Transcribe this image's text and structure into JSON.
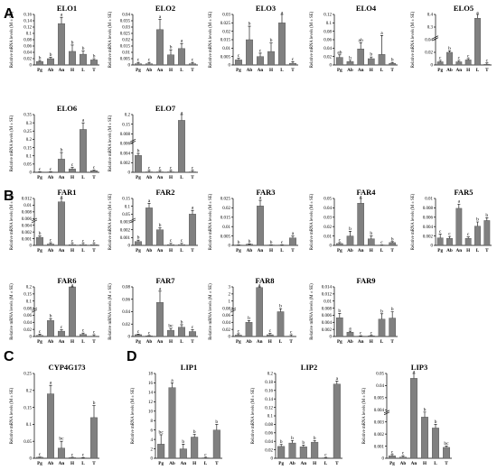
{
  "ylabel_default": "Relative mRNA levels (M ± SE)",
  "categories_default": [
    "Pg",
    "Ab",
    "An",
    "H",
    "L",
    "T"
  ],
  "chart_data": [
    {
      "type": "bar",
      "panel": "A",
      "title": "ELO1",
      "ylabel": "Relative mRNA levels (M ± SE)",
      "categories": [
        "Pg",
        "Ab",
        "An",
        "H",
        "L",
        "T"
      ],
      "values": [
        0.011,
        0.02,
        0.131,
        0.043,
        0.034,
        0.016
      ],
      "errors": [
        0.003,
        0.004,
        0.02,
        0.02,
        0.01,
        0.004
      ],
      "letters": [
        "b",
        "b",
        "a",
        "b",
        "b",
        "b"
      ],
      "yticks": [
        0,
        0.02,
        0.04,
        0.06,
        0.08,
        0.1,
        0.12,
        0.14,
        0.16
      ],
      "ylim": [
        0,
        0.16
      ]
    },
    {
      "type": "bar",
      "panel": "A",
      "title": "ELO2",
      "ylabel": "Relative mRNA levels (M ± SE)",
      "categories": [
        "Pg",
        "Ab",
        "An",
        "H",
        "L",
        "T"
      ],
      "values": [
        0.001,
        0.001,
        0.028,
        0.008,
        0.013,
        0.001
      ],
      "errors": [
        0.001,
        0.001,
        0.008,
        0.004,
        0.004,
        0.001
      ],
      "letters": [
        "c",
        "c",
        "a",
        "b",
        "a",
        "c"
      ],
      "yticks": [
        0,
        0.005,
        0.01,
        0.015,
        0.02,
        0.025,
        0.03,
        0.035,
        0.04
      ],
      "ylim": [
        0,
        0.04
      ]
    },
    {
      "type": "bar",
      "panel": "A",
      "title": "ELO3",
      "ylabel": "Relative mRNA levels (M ± SE)",
      "categories": [
        "Pg",
        "Ab",
        "An",
        "H",
        "L",
        "T"
      ],
      "values": [
        0.003,
        0.015,
        0.005,
        0.008,
        0.025,
        0.001
      ],
      "errors": [
        0.001,
        0.008,
        0.002,
        0.005,
        0.005,
        0.001
      ],
      "letters": [
        "c",
        "b",
        "c",
        "b",
        "a",
        "c"
      ],
      "yticks": [
        0,
        0.005,
        0.01,
        0.015,
        0.02,
        0.025,
        0.03
      ],
      "ylim": [
        0,
        0.03
      ]
    },
    {
      "type": "bar",
      "panel": "A",
      "title": "ELO4",
      "ylabel": "Relative mRNA levels (M ± SE)",
      "categories": [
        "Pg",
        "Ab",
        "An",
        "H",
        "L",
        "T"
      ],
      "values": [
        0.018,
        0.008,
        0.038,
        0.015,
        0.025,
        0.004
      ],
      "errors": [
        0.006,
        0.003,
        0.015,
        0.004,
        0.045,
        0.002
      ],
      "letters": [
        "ab",
        "b",
        "ab",
        "b",
        "a",
        "b"
      ],
      "yticks": [
        0,
        0.02,
        0.04,
        0.06,
        0.08,
        0.1,
        0.12
      ],
      "ylim": [
        0,
        0.12
      ]
    },
    {
      "type": "bar",
      "panel": "A",
      "title": "ELO5",
      "ylabel": "Relative mRNA levels (M ± SE)",
      "categories": [
        "Pg",
        "Ab",
        "An",
        "H",
        "L",
        "T"
      ],
      "values": [
        0.005,
        0.02,
        0.005,
        0.008,
        0.37,
        0.001
      ],
      "errors": [
        0.002,
        0.005,
        0.002,
        0.003,
        0.08,
        0.001
      ],
      "letters": [
        "c",
        "b",
        "c",
        "c",
        "a",
        "c"
      ],
      "yticks": [
        0,
        0.02,
        0.04,
        0.3,
        0.4
      ],
      "ylim": [
        0,
        0.45
      ]
    },
    {
      "type": "bar",
      "panel": "A",
      "title": "ELO6",
      "ylabel": "Relative mRNA levels (M ± SE)",
      "categories": [
        "Pg",
        "Ab",
        "An",
        "H",
        "L",
        "T"
      ],
      "values": [
        0.001,
        0.001,
        0.08,
        0.02,
        0.26,
        0.01
      ],
      "errors": [
        0.001,
        0.001,
        0.04,
        0.01,
        0.04,
        0.005
      ],
      "letters": [
        "c",
        "c",
        "b",
        "c",
        "a",
        "c"
      ],
      "yticks": [
        0,
        0.05,
        0.1,
        0.15,
        0.2,
        0.25,
        0.3,
        0.35
      ],
      "ylim": [
        0,
        0.35
      ]
    },
    {
      "type": "bar",
      "panel": "A",
      "title": "ELO7",
      "ylabel": "Relative mRNA levels (M ± SE)",
      "categories": [
        "Pg",
        "Ab",
        "An",
        "H",
        "L",
        "T"
      ],
      "values": [
        0.0035,
        0.0001,
        0.0001,
        0.0001,
        0.17,
        0.0001
      ],
      "errors": [
        0.0012,
        0.0001,
        0.0001,
        0.0001,
        0.006,
        0.0001
      ],
      "letters": [
        "b",
        "c",
        "c",
        "c",
        "a",
        "c"
      ],
      "yticks": [
        0,
        0.002,
        0.004,
        0.006,
        0.008,
        0.15,
        0.2
      ],
      "ylim": [
        0,
        0.2
      ]
    },
    {
      "type": "bar",
      "panel": "B",
      "title": "FAR1",
      "ylabel": "Relative mRNA levels (M ± SE)",
      "categories": [
        "Pg",
        "Ab",
        "An",
        "H",
        "L",
        "T"
      ],
      "values": [
        0.0012,
        0.0002,
        0.011,
        0.0001,
        0.0001,
        0.0001
      ],
      "errors": [
        0.0003,
        0.0001,
        0.0008,
        0.0001,
        0.0001,
        0.0001
      ],
      "letters": [
        "b",
        "c",
        "a",
        "c",
        "c",
        "c"
      ],
      "yticks": [
        0,
        0.001,
        0.002,
        0.004,
        0.006,
        0.008,
        0.01,
        0.012
      ],
      "ylim": [
        0,
        0.012
      ]
    },
    {
      "type": "bar",
      "panel": "B",
      "title": "FAR2",
      "ylabel": "Relative mRNA levels (M ± SE)",
      "categories": [
        "Pg",
        "Ab",
        "An",
        "H",
        "L",
        "T"
      ],
      "values": [
        0.0005,
        0.09,
        0.002,
        0.0001,
        0.0001,
        0.05
      ],
      "errors": [
        0.0002,
        0.02,
        0.0005,
        0.0001,
        0.0001,
        0.01
      ],
      "letters": [
        "b",
        "a",
        "b",
        "c",
        "c",
        "a"
      ],
      "yticks": [
        0,
        0.001,
        0.002,
        0.003,
        0.05,
        0.1,
        0.15
      ],
      "ylim": [
        0,
        0.15
      ]
    },
    {
      "type": "bar",
      "panel": "B",
      "title": "FAR3",
      "ylabel": "Relative mRNA levels (M ± SE)",
      "categories": [
        "Pg",
        "Ab",
        "An",
        "H",
        "L",
        "T"
      ],
      "values": [
        0.0002,
        0.0006,
        0.021,
        0.0002,
        0.0001,
        0.004
      ],
      "errors": [
        0.0001,
        0.0002,
        0.003,
        0.0001,
        0.0001,
        0.001
      ],
      "letters": [
        "b",
        "b",
        "a",
        "b",
        "c",
        "a"
      ],
      "yticks": [
        0,
        0.005,
        0.01,
        0.015,
        0.02,
        0.025
      ],
      "ylim": [
        0,
        0.025
      ]
    },
    {
      "type": "bar",
      "panel": "B",
      "title": "FAR4",
      "ylabel": "Relative mRNA levels (M ± SE)",
      "categories": [
        "Pg",
        "Ab",
        "An",
        "H",
        "L",
        "T"
      ],
      "values": [
        0.002,
        0.01,
        0.045,
        0.007,
        0.0002,
        0.003
      ],
      "errors": [
        0.001,
        0.005,
        0.008,
        0.003,
        0.0001,
        0.001
      ],
      "letters": [
        "c",
        "b",
        "a",
        "b",
        "c",
        "b"
      ],
      "yticks": [
        0,
        0.01,
        0.02,
        0.03,
        0.04,
        0.05
      ],
      "ylim": [
        0,
        0.05
      ]
    },
    {
      "type": "bar",
      "panel": "B",
      "title": "FAR5",
      "ylabel": "Relative mRNA levels (M ± SE)",
      "categories": [
        "Pg",
        "Ab",
        "An",
        "H",
        "L",
        "T"
      ],
      "values": [
        0.0016,
        0.0015,
        0.0079,
        0.0015,
        0.0041,
        0.0053
      ],
      "errors": [
        0.0008,
        0.0004,
        0.0009,
        0.0003,
        0.0009,
        0.0006
      ],
      "letters": [
        "c",
        "c",
        "a",
        "c",
        "b",
        "b"
      ],
      "yticks": [
        0,
        0.002,
        0.004,
        0.006,
        0.008,
        0.01
      ],
      "ylim": [
        0,
        0.01
      ]
    },
    {
      "type": "bar",
      "panel": "B",
      "title": "FAR6",
      "ylabel": "Relative mRNA levels (M ± SE)",
      "categories": [
        "Pg",
        "Ab",
        "An",
        "H",
        "L",
        "T"
      ],
      "values": [
        0.003,
        0.045,
        0.015,
        0.2,
        0.006,
        0.001
      ],
      "errors": [
        0.001,
        0.01,
        0.005,
        0.03,
        0.002,
        0.001
      ],
      "letters": [
        "c",
        "b",
        "c",
        "a",
        "c",
        "c"
      ],
      "yticks": [
        0,
        0.02,
        0.04,
        0.06,
        0.08,
        0.1,
        0.15,
        0.2
      ],
      "ylim": [
        0,
        0.25
      ]
    },
    {
      "type": "bar",
      "panel": "B",
      "title": "FAR7",
      "ylabel": "Relative mRNA levels (M ± SE)",
      "categories": [
        "Pg",
        "Ab",
        "An",
        "H",
        "L",
        "T"
      ],
      "values": [
        0.003,
        0.001,
        0.055,
        0.01,
        0.015,
        0.008
      ],
      "errors": [
        0.001,
        0.0005,
        0.018,
        0.003,
        0.004,
        0.003
      ],
      "letters": [
        "c",
        "c",
        "a",
        "bc",
        "b",
        "c"
      ],
      "yticks": [
        0,
        0.02,
        0.04,
        0.06,
        0.08
      ],
      "ylim": [
        0,
        0.08
      ]
    },
    {
      "type": "bar",
      "panel": "B",
      "title": "FAR8",
      "ylabel": "Relative mRNA levels (M ± SE)",
      "categories": [
        "Pg",
        "Ab",
        "An",
        "H",
        "L",
        "T"
      ],
      "values": [
        0.004,
        0.04,
        2.9,
        0.005,
        0.07,
        0.0001
      ],
      "errors": [
        0.002,
        0.015,
        0.2,
        0.002,
        0.02,
        0.0001
      ],
      "letters": [
        "c",
        "b",
        "a",
        "c",
        "b",
        "c"
      ],
      "yticks": [
        0,
        0.02,
        0.04,
        0.06,
        0.08,
        1,
        2,
        3
      ],
      "ylim": [
        0,
        3
      ]
    },
    {
      "type": "bar",
      "panel": "B",
      "title": "FAR9",
      "ylabel": "Relative mRNA levels (M ± SE)",
      "categories": [
        "Pg",
        "Ab",
        "An",
        "H",
        "L",
        "T"
      ],
      "values": [
        0.0053,
        0.0012,
        0.0001,
        0.0002,
        0.0049,
        0.0052
      ],
      "errors": [
        0.0012,
        0.0003,
        0.0001,
        0.0001,
        0.0015,
        0.0018
      ],
      "letters": [
        "b",
        "a",
        "c",
        "c",
        "b",
        "b"
      ],
      "yticks": [
        0,
        0.002,
        0.004,
        0.006,
        0.008,
        0.01,
        0.012,
        0.014
      ],
      "ylim": [
        0,
        0.014
      ]
    },
    {
      "type": "bar",
      "panel": "C",
      "title": "CYP4G173",
      "ylabel": "Relative mRNA levels (M ± SE)",
      "categories": [
        "Pg",
        "Ab",
        "An",
        "H",
        "L",
        "T"
      ],
      "values": [
        0.003,
        0.19,
        0.03,
        0.002,
        0.001,
        0.12
      ],
      "errors": [
        0.001,
        0.025,
        0.02,
        0.001,
        0.001,
        0.035
      ],
      "letters": [
        "c",
        "a",
        "bc",
        "c",
        "c",
        "b"
      ],
      "yticks": [
        0,
        0.05,
        0.1,
        0.15,
        0.2,
        0.25
      ],
      "ylim": [
        0,
        0.25
      ]
    },
    {
      "type": "bar",
      "panel": "D",
      "title": "LIP1",
      "ylabel": "Relative mRNA levels (M ± SE)",
      "categories": [
        "Pg",
        "Ab",
        "An",
        "H",
        "L",
        "T"
      ],
      "values": [
        3,
        15,
        2,
        4.5,
        0.1,
        6
      ],
      "errors": [
        2,
        1,
        1,
        0.6,
        0.1,
        1.2
      ],
      "letters": [
        "bc",
        "a",
        "b",
        "b",
        "c",
        "b"
      ],
      "yticks": [
        0,
        2,
        4,
        6,
        8,
        10,
        12,
        14,
        16,
        18
      ],
      "ylim": [
        0,
        18
      ]
    },
    {
      "type": "bar",
      "panel": "D",
      "title": "LIP2",
      "ylabel": "Relative mRNA levels (M ± SE)",
      "categories": [
        "Pg",
        "Ab",
        "An",
        "H",
        "L",
        "T"
      ],
      "values": [
        0.028,
        0.036,
        0.027,
        0.038,
        0.001,
        0.175
      ],
      "errors": [
        0.005,
        0.006,
        0.004,
        0.004,
        0.001,
        0.007
      ],
      "letters": [
        "b",
        "b",
        "b",
        "b",
        "c",
        "a"
      ],
      "yticks": [
        0,
        0.02,
        0.04,
        0.06,
        0.08,
        0.1,
        0.12,
        0.14,
        0.16,
        0.18,
        0.2
      ],
      "ylim": [
        0,
        0.2
      ]
    },
    {
      "type": "bar",
      "panel": "D",
      "title": "LIP3",
      "ylabel": "Relative mRNA levels (M ± SE)",
      "categories": [
        "Pg",
        "Ab",
        "An",
        "H",
        "L",
        "T"
      ],
      "values": [
        0.0002,
        0.0001,
        0.046,
        0.0034,
        0.0025,
        0.0009
      ],
      "errors": [
        0.0001,
        0.0001,
        0.005,
        0.0006,
        0.0005,
        0.0003
      ],
      "letters": [
        "c",
        "c",
        "a",
        "b",
        "b",
        "bc"
      ],
      "yticks": [
        0,
        0.001,
        0.002,
        0.003,
        0.004,
        0.005,
        0.04,
        0.05
      ],
      "ylim": [
        0,
        0.05
      ]
    }
  ],
  "panel_labels": [
    "A",
    "B",
    "C",
    "D"
  ]
}
